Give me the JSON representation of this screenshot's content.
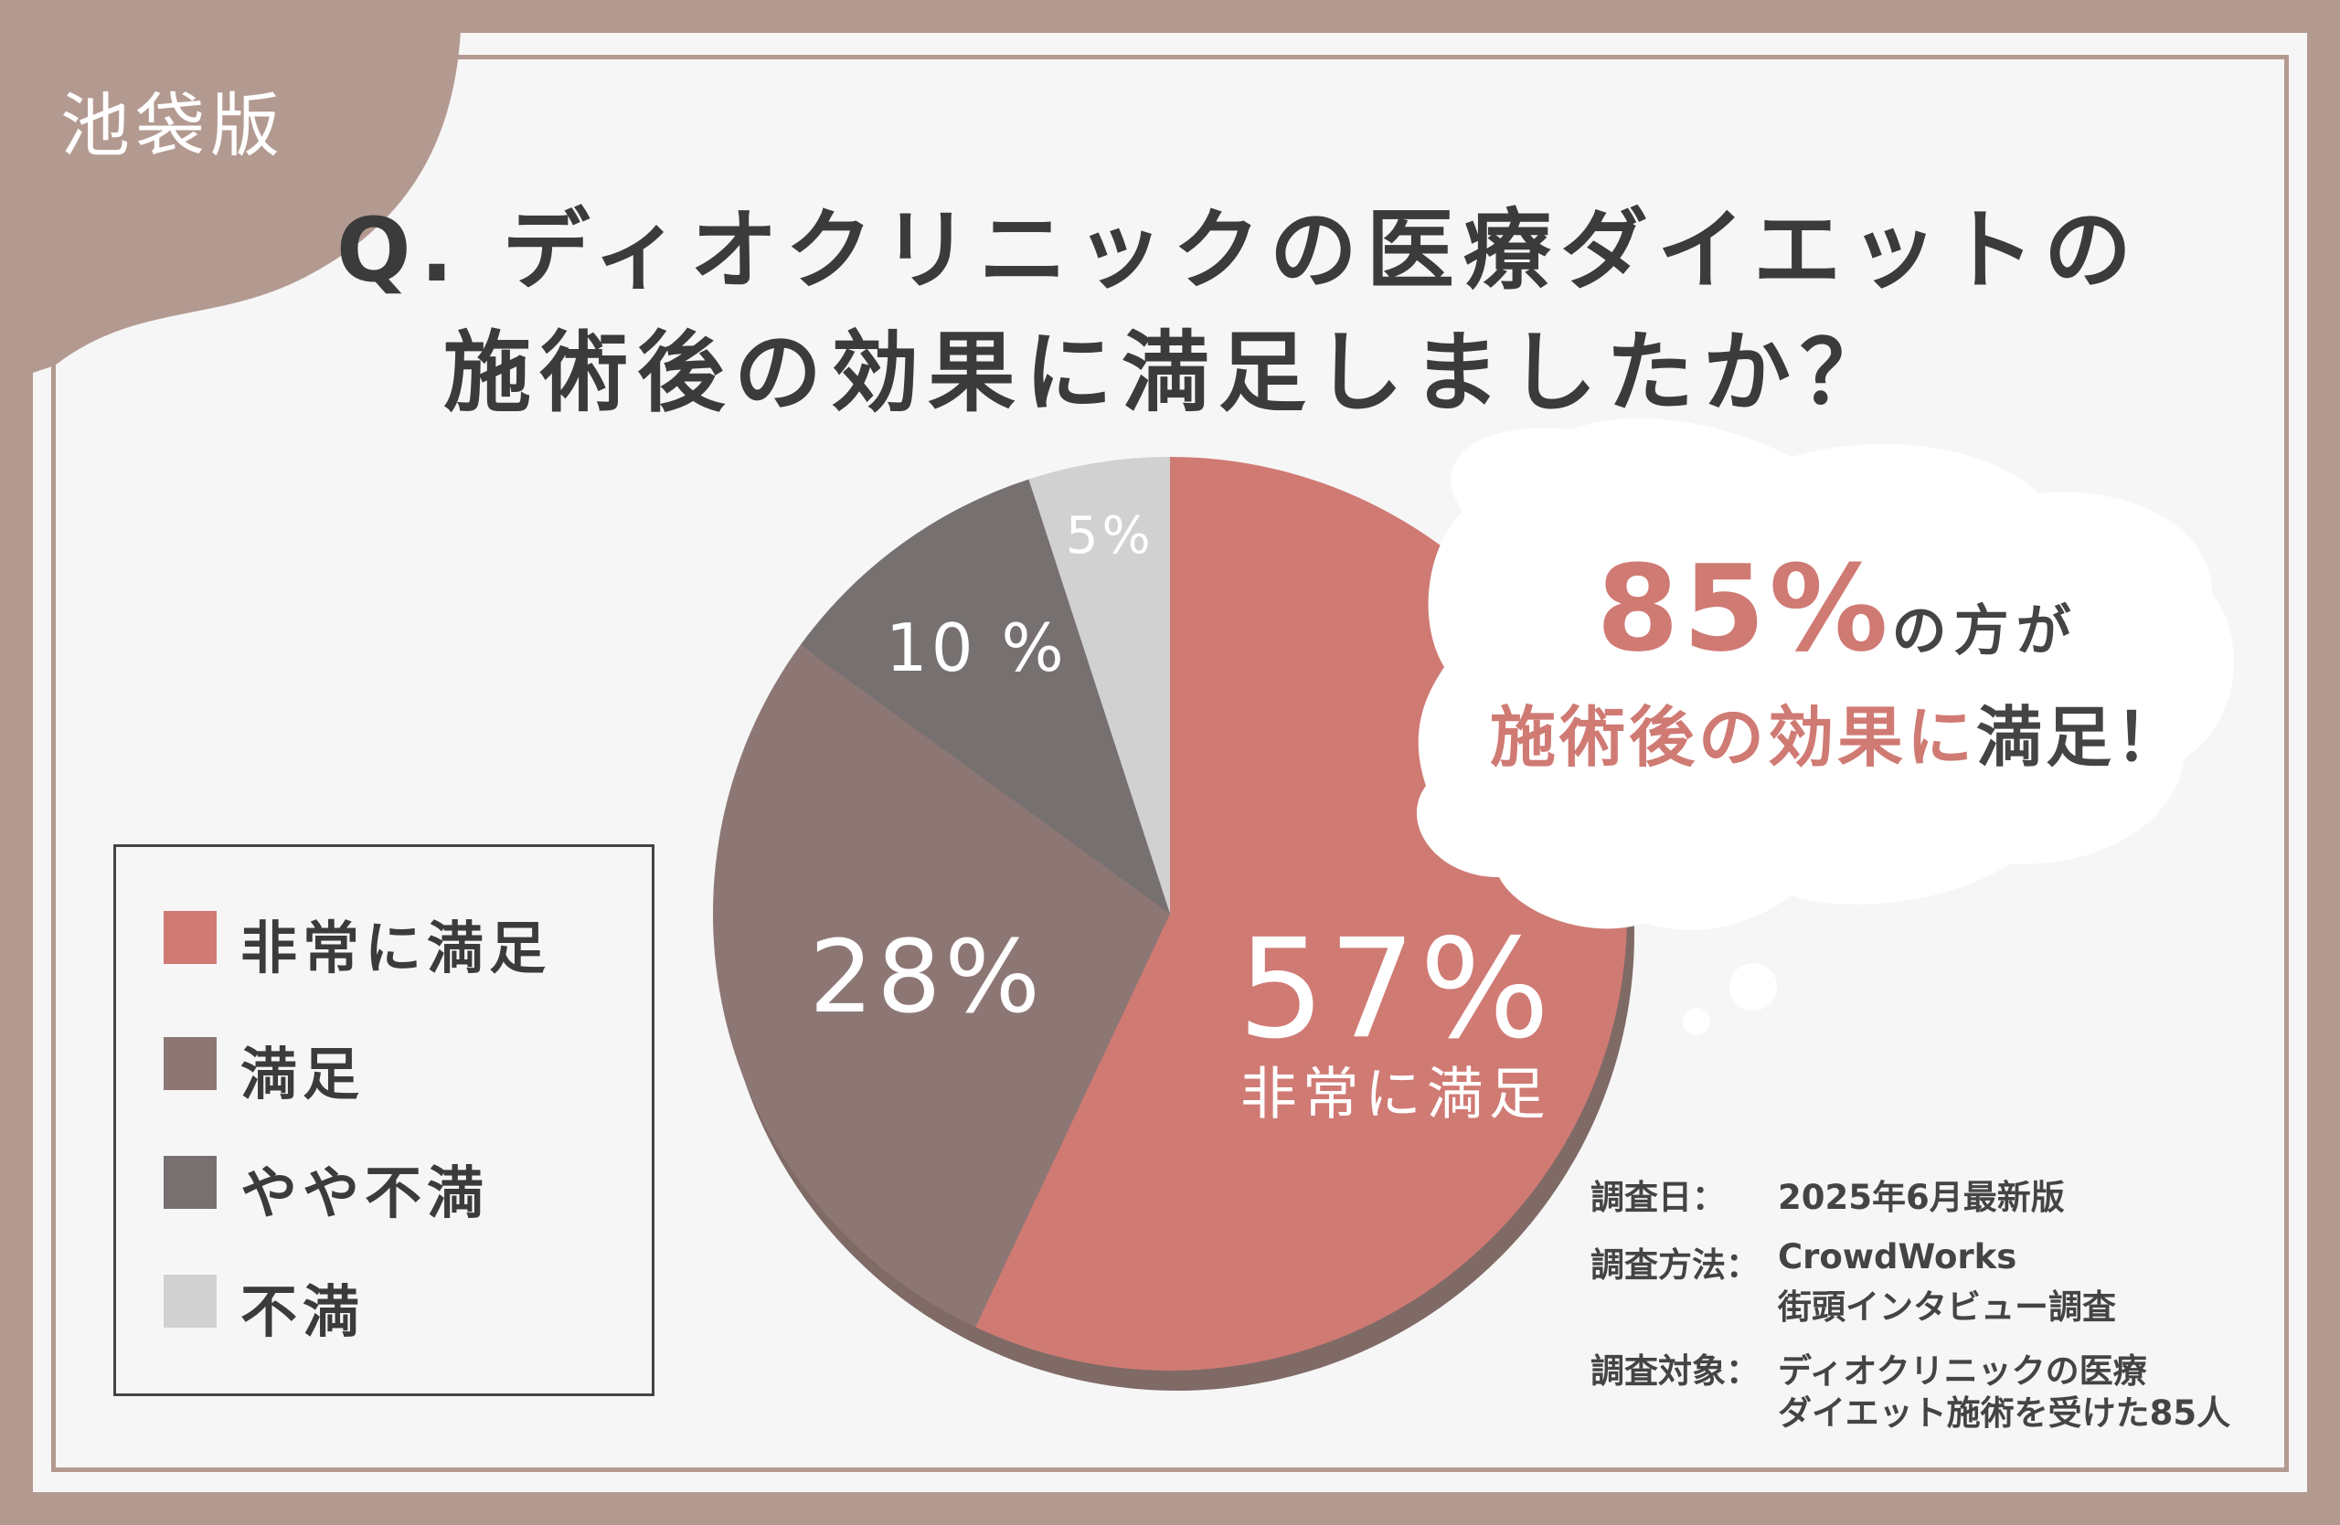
{
  "region_label": "池袋版",
  "title": {
    "line1": "Q. ディオクリニックの医療ダイエットの",
    "line2": "施術後の効果に満足しましたか？"
  },
  "callout": {
    "percent": "85%",
    "percent_suffix": "の方が",
    "accent": "施術後の効果に",
    "tail": "満足！"
  },
  "colors": {
    "very_satisfied": "#d07a74",
    "satisfied": "#8d7774",
    "somewhat_dissatisfied": "#767170",
    "dissatisfied": "#d2d1d1",
    "frame": "#b39a91"
  },
  "chart_data": {
    "type": "pie",
    "slices": [
      {
        "label": "非常に満足",
        "value": 57,
        "display": "57%",
        "color": "#d07a74",
        "sublabel": "非常に満足"
      },
      {
        "label": "満足",
        "value": 28,
        "display": "28%",
        "color": "#8d7774"
      },
      {
        "label": "やや不満",
        "value": 10,
        "display": "10 %",
        "color": "#767170"
      },
      {
        "label": "不満",
        "value": 5,
        "display": "5%",
        "color": "#d2d1d1"
      }
    ],
    "legend": [
      "非常に満足",
      "満足",
      "やや不満",
      "不満"
    ],
    "legend_position": "bottom-left"
  },
  "survey": {
    "date_key": "調査日：",
    "date_val": "2025年6月最新版",
    "method_key": "調査方法：",
    "method_val_1": "CrowdWorks",
    "method_val_2": "街頭インタビュー調査",
    "target_key": "調査対象：",
    "target_val_1": "ディオクリニックの医療",
    "target_val_2": "ダイエット施術を受けた85人"
  }
}
